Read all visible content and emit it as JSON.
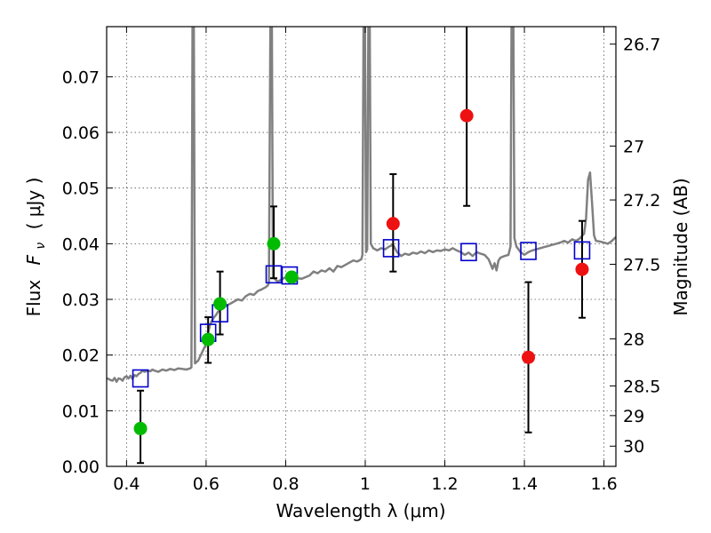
{
  "chart_data": {
    "type": "scatter",
    "xlabel": "Wavelength  λ (μm)",
    "ylabel_left_prefix": "Flux",
    "ylabel_left_symbol": "F",
    "ylabel_left_sub": "ν",
    "ylabel_left_unit": "(  μJy  )",
    "ylabel_right": "Magnitude (AB)",
    "xlim": [
      0.35,
      1.63
    ],
    "ylim": [
      0.0,
      0.079
    ],
    "grid": true,
    "x_ticks": [
      {
        "value": 0.4,
        "label": "0.4"
      },
      {
        "value": 0.6,
        "label": "0.6"
      },
      {
        "value": 0.8,
        "label": "0.8"
      },
      {
        "value": 1.0,
        "label": "1"
      },
      {
        "value": 1.2,
        "label": "1.2"
      },
      {
        "value": 1.4,
        "label": "1.4"
      },
      {
        "value": 1.6,
        "label": "1.6"
      }
    ],
    "y_ticks": [
      {
        "value": 0.0,
        "label": "0.00"
      },
      {
        "value": 0.01,
        "label": "0.01"
      },
      {
        "value": 0.02,
        "label": "0.02"
      },
      {
        "value": 0.03,
        "label": "0.03"
      },
      {
        "value": 0.04,
        "label": "0.04"
      },
      {
        "value": 0.05,
        "label": "0.05"
      },
      {
        "value": 0.06,
        "label": "0.06"
      },
      {
        "value": 0.07,
        "label": "0.07"
      }
    ],
    "mag_ticks": [
      {
        "mag": 26.7,
        "label": "26.7"
      },
      {
        "mag": 27,
        "label": "27"
      },
      {
        "mag": 27.2,
        "label": "27.2"
      },
      {
        "mag": 27.5,
        "label": "27.5"
      },
      {
        "mag": 28,
        "label": "28"
      },
      {
        "mag": 28.5,
        "label": "28.5"
      },
      {
        "mag": 29,
        "label": "29"
      },
      {
        "mag": 30,
        "label": "30"
      }
    ],
    "model_spectrum": {
      "color": "#808080",
      "points": [
        [
          0.35,
          0.0158
        ],
        [
          0.355,
          0.0157
        ],
        [
          0.36,
          0.0155
        ],
        [
          0.365,
          0.0154
        ],
        [
          0.37,
          0.0159
        ],
        [
          0.375,
          0.0152
        ],
        [
          0.38,
          0.0158
        ],
        [
          0.385,
          0.0157
        ],
        [
          0.39,
          0.0154
        ],
        [
          0.395,
          0.016
        ],
        [
          0.4,
          0.0162
        ],
        [
          0.405,
          0.0158
        ],
        [
          0.41,
          0.0163
        ],
        [
          0.415,
          0.0157
        ],
        [
          0.42,
          0.0164
        ],
        [
          0.425,
          0.0162
        ],
        [
          0.43,
          0.0166
        ],
        [
          0.435,
          0.0168
        ],
        [
          0.44,
          0.0172
        ],
        [
          0.445,
          0.017
        ],
        [
          0.45,
          0.0171
        ],
        [
          0.455,
          0.0172
        ],
        [
          0.46,
          0.0171
        ],
        [
          0.465,
          0.0174
        ],
        [
          0.47,
          0.0172
        ],
        [
          0.48,
          0.017
        ],
        [
          0.49,
          0.0174
        ],
        [
          0.5,
          0.0172
        ],
        [
          0.51,
          0.0175
        ],
        [
          0.52,
          0.0173
        ],
        [
          0.53,
          0.0176
        ],
        [
          0.54,
          0.0175
        ],
        [
          0.55,
          0.0174
        ],
        [
          0.56,
          0.0176
        ],
        [
          0.563,
          0.0178
        ],
        [
          0.566,
          0.084
        ],
        [
          0.569,
          0.084
        ],
        [
          0.572,
          0.0185
        ],
        [
          0.58,
          0.019
        ],
        [
          0.59,
          0.0205
        ],
        [
          0.6,
          0.022
        ],
        [
          0.605,
          0.024
        ],
        [
          0.61,
          0.0255
        ],
        [
          0.615,
          0.0262
        ],
        [
          0.62,
          0.0268
        ],
        [
          0.625,
          0.0272
        ],
        [
          0.63,
          0.0278
        ],
        [
          0.64,
          0.0283
        ],
        [
          0.65,
          0.0288
        ],
        [
          0.66,
          0.0292
        ],
        [
          0.67,
          0.0296
        ],
        [
          0.68,
          0.03
        ],
        [
          0.69,
          0.0298
        ],
        [
          0.7,
          0.0306
        ],
        [
          0.71,
          0.031
        ],
        [
          0.72,
          0.0308
        ],
        [
          0.73,
          0.0315
        ],
        [
          0.74,
          0.0318
        ],
        [
          0.75,
          0.0322
        ],
        [
          0.755,
          0.0325
        ],
        [
          0.758,
          0.033
        ],
        [
          0.762,
          0.084
        ],
        [
          0.765,
          0.084
        ],
        [
          0.768,
          0.034
        ],
        [
          0.775,
          0.0335
        ],
        [
          0.78,
          0.0332
        ],
        [
          0.79,
          0.0336
        ],
        [
          0.8,
          0.034
        ],
        [
          0.81,
          0.0338
        ],
        [
          0.82,
          0.0335
        ],
        [
          0.83,
          0.0338
        ],
        [
          0.84,
          0.0337
        ],
        [
          0.85,
          0.034
        ],
        [
          0.86,
          0.0343
        ],
        [
          0.87,
          0.035
        ],
        [
          0.88,
          0.0347
        ],
        [
          0.89,
          0.0352
        ],
        [
          0.9,
          0.035
        ],
        [
          0.91,
          0.0356
        ],
        [
          0.92,
          0.035
        ],
        [
          0.93,
          0.036
        ],
        [
          0.94,
          0.0358
        ],
        [
          0.95,
          0.0362
        ],
        [
          0.96,
          0.0366
        ],
        [
          0.97,
          0.037
        ],
        [
          0.98,
          0.0368
        ],
        [
          0.99,
          0.0372
        ],
        [
          0.993,
          0.038
        ],
        [
          0.996,
          0.084
        ],
        [
          0.999,
          0.084
        ],
        [
          1.002,
          0.0385
        ],
        [
          1.005,
          0.039
        ],
        [
          1.008,
          0.084
        ],
        [
          1.011,
          0.084
        ],
        [
          1.014,
          0.04
        ],
        [
          1.02,
          0.0392
        ],
        [
          1.03,
          0.0388
        ],
        [
          1.04,
          0.0392
        ],
        [
          1.05,
          0.039
        ],
        [
          1.06,
          0.0395
        ],
        [
          1.07,
          0.0398
        ],
        [
          1.08,
          0.0385
        ],
        [
          1.09,
          0.0378
        ],
        [
          1.1,
          0.0382
        ],
        [
          1.11,
          0.038
        ],
        [
          1.12,
          0.0384
        ],
        [
          1.13,
          0.0382
        ],
        [
          1.14,
          0.0386
        ],
        [
          1.15,
          0.0383
        ],
        [
          1.16,
          0.0388
        ],
        [
          1.17,
          0.0385
        ],
        [
          1.18,
          0.0388
        ],
        [
          1.19,
          0.0387
        ],
        [
          1.2,
          0.039
        ],
        [
          1.21,
          0.0388
        ],
        [
          1.22,
          0.0392
        ],
        [
          1.23,
          0.0388
        ],
        [
          1.24,
          0.0385
        ],
        [
          1.25,
          0.038
        ],
        [
          1.26,
          0.0384
        ],
        [
          1.27,
          0.0378
        ],
        [
          1.28,
          0.0385
        ],
        [
          1.29,
          0.0382
        ],
        [
          1.3,
          0.038
        ],
        [
          1.31,
          0.0372
        ],
        [
          1.32,
          0.0355
        ],
        [
          1.325,
          0.0365
        ],
        [
          1.33,
          0.0352
        ],
        [
          1.335,
          0.037
        ],
        [
          1.34,
          0.0375
        ],
        [
          1.35,
          0.0378
        ],
        [
          1.36,
          0.038
        ],
        [
          1.365,
          0.0395
        ],
        [
          1.368,
          0.084
        ],
        [
          1.372,
          0.084
        ],
        [
          1.375,
          0.041
        ],
        [
          1.38,
          0.0395
        ],
        [
          1.39,
          0.0385
        ],
        [
          1.4,
          0.038
        ],
        [
          1.41,
          0.0385
        ],
        [
          1.42,
          0.0388
        ],
        [
          1.43,
          0.039
        ],
        [
          1.44,
          0.0392
        ],
        [
          1.45,
          0.0394
        ],
        [
          1.46,
          0.0396
        ],
        [
          1.47,
          0.0398
        ],
        [
          1.48,
          0.04
        ],
        [
          1.49,
          0.0402
        ],
        [
          1.5,
          0.0405
        ],
        [
          1.51,
          0.0402
        ],
        [
          1.52,
          0.0408
        ],
        [
          1.53,
          0.0405
        ],
        [
          1.54,
          0.041
        ],
        [
          1.55,
          0.0418
        ],
        [
          1.555,
          0.0445
        ],
        [
          1.56,
          0.0515
        ],
        [
          1.565,
          0.0528
        ],
        [
          1.57,
          0.0475
        ],
        [
          1.575,
          0.0415
        ],
        [
          1.58,
          0.0405
        ],
        [
          1.59,
          0.0404
        ],
        [
          1.6,
          0.0402
        ],
        [
          1.61,
          0.04
        ],
        [
          1.62,
          0.0405
        ],
        [
          1.63,
          0.0412
        ]
      ]
    },
    "model_photometry": {
      "color": "#0000cc",
      "marker": "open-square",
      "points": [
        [
          0.435,
          0.0158
        ],
        [
          0.605,
          0.024
        ],
        [
          0.635,
          0.0275
        ],
        [
          0.77,
          0.0345
        ],
        [
          0.81,
          0.0343
        ],
        [
          1.065,
          0.0392
        ],
        [
          1.26,
          0.0385
        ],
        [
          1.41,
          0.0387
        ],
        [
          1.545,
          0.0388
        ]
      ]
    },
    "observed_optical": {
      "color": "#00bb00",
      "marker": "filled-circle",
      "points": [
        {
          "x": 0.435,
          "y": 0.0068,
          "err_low": 0.0062,
          "err_high": 0.0068
        },
        {
          "x": 0.605,
          "y": 0.0228,
          "err_low": 0.0042,
          "err_high": 0.004
        },
        {
          "x": 0.635,
          "y": 0.0292,
          "err_low": 0.0055,
          "err_high": 0.0058
        },
        {
          "x": 0.77,
          "y": 0.04,
          "err_low": 0.0062,
          "err_high": 0.0067
        },
        {
          "x": 0.815,
          "y": 0.034,
          "err_low": 0.0,
          "err_high": 0.0
        }
      ]
    },
    "observed_nir": {
      "color": "#ee1111",
      "marker": "filled-circle",
      "points": [
        {
          "x": 1.07,
          "y": 0.0436,
          "err_low": 0.0086,
          "err_high": 0.0089
        },
        {
          "x": 1.255,
          "y": 0.063,
          "err_low": 0.0162,
          "err_high": 0.03
        },
        {
          "x": 1.41,
          "y": 0.0196,
          "err_low": 0.0135,
          "err_high": 0.0135
        },
        {
          "x": 1.545,
          "y": 0.0354,
          "err_low": 0.0087,
          "err_high": 0.0087
        }
      ]
    }
  }
}
